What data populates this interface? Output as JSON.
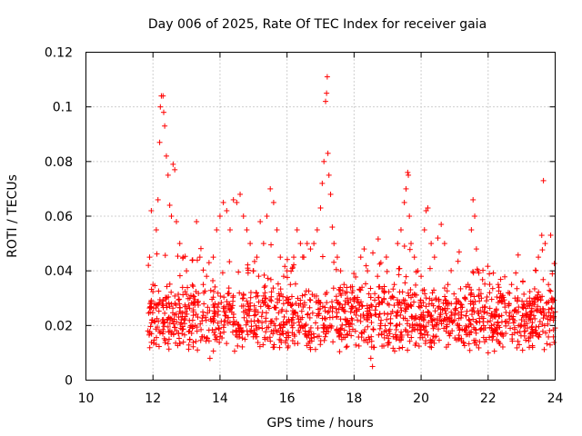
{
  "chart_data": {
    "type": "scatter",
    "title": "Day 006 of 2025, Rate Of TEC Index for receiver gaia",
    "xlabel": "GPS time / hours",
    "ylabel": "ROTI / TECUs",
    "xlim": [
      10,
      24
    ],
    "ylim": [
      0,
      0.12
    ],
    "xticks": [
      10,
      12,
      14,
      16,
      18,
      20,
      22,
      24
    ],
    "yticks": [
      0,
      0.02,
      0.04,
      0.06,
      0.08,
      0.1,
      0.12
    ],
    "xtick_labels": [
      "10",
      "12",
      "14",
      "16",
      "18",
      "20",
      "22",
      "24"
    ],
    "ytick_labels": [
      "0",
      "0.02",
      "0.04",
      "0.06",
      "0.08",
      "0.1",
      "0.12"
    ],
    "grid": true,
    "marker": "plus",
    "color": "#ff0000",
    "series": [
      {
        "name": "ROTI",
        "points": [
          [
            11.85,
            0.018
          ],
          [
            11.9,
            0.045
          ],
          [
            11.95,
            0.062
          ],
          [
            12.0,
            0.035
          ],
          [
            12.05,
            0.028
          ],
          [
            12.1,
            0.055
          ],
          [
            12.15,
            0.066
          ],
          [
            12.2,
            0.087
          ],
          [
            12.22,
            0.1
          ],
          [
            12.25,
            0.104
          ],
          [
            12.3,
            0.104
          ],
          [
            12.32,
            0.098
          ],
          [
            12.35,
            0.093
          ],
          [
            12.4,
            0.082
          ],
          [
            12.45,
            0.075
          ],
          [
            12.5,
            0.064
          ],
          [
            12.55,
            0.06
          ],
          [
            12.6,
            0.079
          ],
          [
            12.65,
            0.077
          ],
          [
            12.7,
            0.058
          ],
          [
            12.8,
            0.05
          ],
          [
            12.9,
            0.045
          ],
          [
            13.0,
            0.04
          ],
          [
            13.1,
            0.03
          ],
          [
            13.2,
            0.025
          ],
          [
            13.3,
            0.058
          ],
          [
            13.4,
            0.045
          ],
          [
            13.5,
            0.035
          ],
          [
            13.6,
            0.038
          ],
          [
            13.7,
            0.008
          ],
          [
            13.8,
            0.045
          ],
          [
            13.9,
            0.055
          ],
          [
            14.0,
            0.06
          ],
          [
            14.1,
            0.065
          ],
          [
            14.2,
            0.062
          ],
          [
            14.3,
            0.055
          ],
          [
            14.4,
            0.066
          ],
          [
            14.5,
            0.065
          ],
          [
            14.6,
            0.068
          ],
          [
            14.7,
            0.06
          ],
          [
            14.8,
            0.055
          ],
          [
            14.9,
            0.05
          ],
          [
            15.0,
            0.04
          ],
          [
            15.1,
            0.045
          ],
          [
            15.2,
            0.058
          ],
          [
            15.3,
            0.05
          ],
          [
            15.4,
            0.06
          ],
          [
            15.5,
            0.07
          ],
          [
            15.6,
            0.065
          ],
          [
            15.7,
            0.055
          ],
          [
            15.8,
            0.045
          ],
          [
            15.9,
            0.038
          ],
          [
            16.0,
            0.04
          ],
          [
            16.1,
            0.035
          ],
          [
            16.2,
            0.045
          ],
          [
            16.3,
            0.055
          ],
          [
            16.4,
            0.05
          ],
          [
            16.5,
            0.045
          ],
          [
            16.6,
            0.05
          ],
          [
            16.7,
            0.048
          ],
          [
            16.8,
            0.05
          ],
          [
            16.9,
            0.055
          ],
          [
            17.0,
            0.063
          ],
          [
            17.05,
            0.072
          ],
          [
            17.1,
            0.08
          ],
          [
            17.15,
            0.102
          ],
          [
            17.18,
            0.105
          ],
          [
            17.2,
            0.111
          ],
          [
            17.22,
            0.083
          ],
          [
            17.25,
            0.075
          ],
          [
            17.3,
            0.068
          ],
          [
            17.35,
            0.056
          ],
          [
            17.4,
            0.05
          ],
          [
            17.5,
            0.045
          ],
          [
            17.6,
            0.04
          ],
          [
            17.7,
            0.035
          ],
          [
            17.8,
            0.03
          ],
          [
            17.9,
            0.025
          ],
          [
            18.0,
            0.03
          ],
          [
            18.1,
            0.022
          ],
          [
            18.2,
            0.045
          ],
          [
            18.3,
            0.048
          ],
          [
            18.4,
            0.04
          ],
          [
            18.5,
            0.008
          ],
          [
            18.55,
            0.005
          ],
          [
            18.6,
            0.012
          ],
          [
            18.7,
            0.038
          ],
          [
            18.8,
            0.043
          ],
          [
            18.9,
            0.032
          ],
          [
            19.0,
            0.028
          ],
          [
            19.1,
            0.03
          ],
          [
            19.2,
            0.035
          ],
          [
            19.3,
            0.05
          ],
          [
            19.4,
            0.055
          ],
          [
            19.5,
            0.065
          ],
          [
            19.55,
            0.07
          ],
          [
            19.6,
            0.076
          ],
          [
            19.62,
            0.075
          ],
          [
            19.65,
            0.06
          ],
          [
            19.7,
            0.05
          ],
          [
            19.8,
            0.045
          ],
          [
            19.9,
            0.04
          ],
          [
            20.0,
            0.038
          ],
          [
            20.1,
            0.055
          ],
          [
            20.15,
            0.062
          ],
          [
            20.2,
            0.063
          ],
          [
            20.3,
            0.05
          ],
          [
            20.4,
            0.045
          ],
          [
            20.5,
            0.052
          ],
          [
            20.6,
            0.057
          ],
          [
            20.7,
            0.05
          ],
          [
            20.8,
            0.035
          ],
          [
            20.9,
            0.028
          ],
          [
            21.0,
            0.022
          ],
          [
            21.1,
            0.02
          ],
          [
            21.2,
            0.025
          ],
          [
            21.3,
            0.03
          ],
          [
            21.4,
            0.035
          ],
          [
            21.5,
            0.055
          ],
          [
            21.55,
            0.066
          ],
          [
            21.6,
            0.06
          ],
          [
            21.65,
            0.048
          ],
          [
            21.7,
            0.04
          ],
          [
            21.8,
            0.03
          ],
          [
            21.9,
            0.025
          ],
          [
            22.0,
            0.01
          ],
          [
            22.1,
            0.02
          ],
          [
            22.2,
            0.025
          ],
          [
            22.3,
            0.035
          ],
          [
            22.4,
            0.03
          ],
          [
            22.5,
            0.028
          ],
          [
            22.6,
            0.032
          ],
          [
            22.7,
            0.035
          ],
          [
            22.8,
            0.03
          ],
          [
            22.9,
            0.025
          ],
          [
            23.0,
            0.02
          ],
          [
            23.1,
            0.02
          ],
          [
            23.2,
            0.028
          ],
          [
            23.3,
            0.025
          ],
          [
            23.4,
            0.03
          ],
          [
            23.5,
            0.045
          ],
          [
            23.6,
            0.053
          ],
          [
            23.65,
            0.073
          ],
          [
            23.7,
            0.05
          ],
          [
            23.8,
            0.035
          ],
          [
            23.9,
            0.03
          ],
          [
            24.0,
            0.025
          ]
        ],
        "band": {
          "description": "dense scatter of ROTI values between 11.85 and 24 hours",
          "typical_range": [
            0.01,
            0.035
          ],
          "x_start": 11.85,
          "x_end": 24.0
        }
      }
    ]
  }
}
